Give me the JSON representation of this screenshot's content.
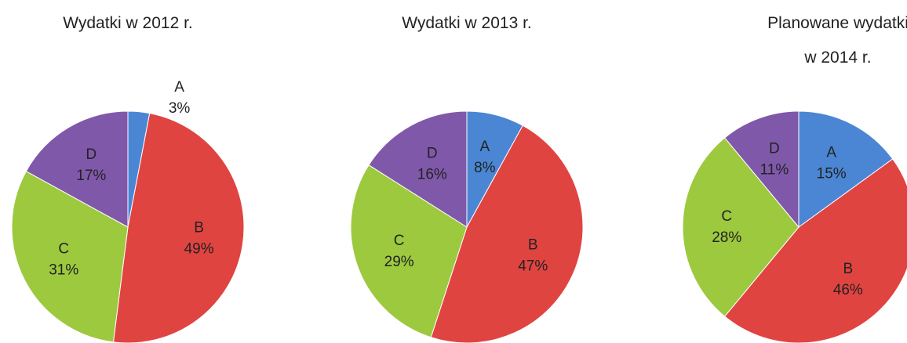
{
  "chart_data": [
    {
      "type": "pie",
      "title": "Wydatki w 2012 r.",
      "categories": [
        "A",
        "B",
        "C",
        "D"
      ],
      "values": [
        3,
        49,
        31,
        17
      ],
      "value_labels": [
        "3%",
        "49%",
        "31%",
        "17%"
      ],
      "colors": [
        "#4a86d4",
        "#e04441",
        "#9dc93f",
        "#8058aa"
      ]
    },
    {
      "type": "pie",
      "title": "Wydatki w 2013 r.",
      "categories": [
        "A",
        "B",
        "C",
        "D"
      ],
      "values": [
        8,
        47,
        29,
        16
      ],
      "value_labels": [
        "8%",
        "47%",
        "29%",
        "16%"
      ],
      "colors": [
        "#4a86d4",
        "#e04441",
        "#9dc93f",
        "#8058aa"
      ]
    },
    {
      "type": "pie",
      "title": "Planowane wydatki w 2014 r.",
      "categories": [
        "A",
        "B",
        "C",
        "D"
      ],
      "values": [
        15,
        46,
        28,
        11
      ],
      "value_labels": [
        "15%",
        "46%",
        "28%",
        "11%"
      ],
      "colors": [
        "#4a86d4",
        "#e04441",
        "#9dc93f",
        "#8058aa"
      ]
    }
  ]
}
